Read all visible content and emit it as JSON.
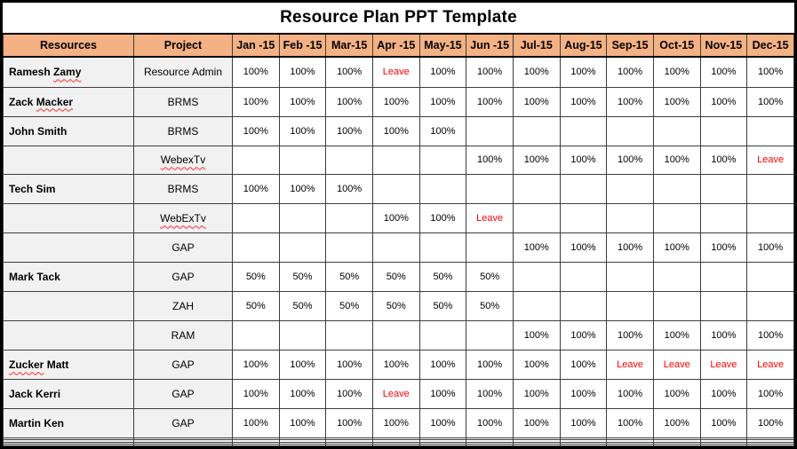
{
  "title": "Resource Plan PPT Template",
  "colors": {
    "header_bg": "#F4B183",
    "label_bg": "#F1F1F1",
    "leave_text": "#FF0000",
    "grid": "#3D3D3D",
    "outer_border": "#000000",
    "squiggle": "#FF2A2A"
  },
  "table": {
    "resources_header": "Resources",
    "project_header": "Project",
    "month_headers": [
      "Jan -15",
      "Feb -15",
      "Mar-15",
      "Apr -15",
      "May-15",
      "Jun -15",
      "Jul-15",
      "Aug-15",
      "Sep-15",
      "Oct-15",
      "Nov-15",
      "Dec-15"
    ],
    "leave_value": "Leave",
    "rows": [
      {
        "resource": "Ramesh Zamy",
        "resource_misspelled": "Zamy",
        "project": "Resource Admin",
        "months": [
          "100%",
          "100%",
          "100%",
          "Leave",
          "100%",
          "100%",
          "100%",
          "100%",
          "100%",
          "100%",
          "100%",
          "100%"
        ]
      },
      {
        "resource": "Zack Macker",
        "resource_misspelled": "Macker",
        "project": "BRMS",
        "months": [
          "100%",
          "100%",
          "100%",
          "100%",
          "100%",
          "100%",
          "100%",
          "100%",
          "100%",
          "100%",
          "100%",
          "100%"
        ]
      },
      {
        "resource": "John Smith",
        "project": "BRMS",
        "months": [
          "100%",
          "100%",
          "100%",
          "100%",
          "100%",
          "",
          "",
          "",
          "",
          "",
          "",
          ""
        ]
      },
      {
        "resource": "",
        "project": "WebexTv",
        "project_misspelled": "WebexTv",
        "months": [
          "",
          "",
          "",
          "",
          "",
          "100%",
          "100%",
          "100%",
          "100%",
          "100%",
          "100%",
          "Leave"
        ]
      },
      {
        "resource": "Tech Sim",
        "project": "BRMS",
        "months": [
          "100%",
          "100%",
          "100%",
          "",
          "",
          "",
          "",
          "",
          "",
          "",
          "",
          ""
        ]
      },
      {
        "resource": "",
        "project": "WebExTv",
        "project_misspelled": "WebExTv",
        "months": [
          "",
          "",
          "",
          "100%",
          "100%",
          "Leave",
          "",
          "",
          "",
          "",
          "",
          ""
        ]
      },
      {
        "resource": "",
        "project": "GAP",
        "months": [
          "",
          "",
          "",
          "",
          "",
          "",
          "100%",
          "100%",
          "100%",
          "100%",
          "100%",
          "100%"
        ]
      },
      {
        "resource": "Mark Tack",
        "project": "GAP",
        "months": [
          "50%",
          "50%",
          "50%",
          "50%",
          "50%",
          "50%",
          "",
          "",
          "",
          "",
          "",
          ""
        ]
      },
      {
        "resource": "",
        "project": "ZAH",
        "months": [
          "50%",
          "50%",
          "50%",
          "50%",
          "50%",
          "50%",
          "",
          "",
          "",
          "",
          "",
          ""
        ]
      },
      {
        "resource": "",
        "project": "RAM",
        "months": [
          "",
          "",
          "",
          "",
          "",
          "",
          "100%",
          "100%",
          "100%",
          "100%",
          "100%",
          "100%"
        ]
      },
      {
        "resource": "Zucker Matt",
        "resource_misspelled": "Zucker",
        "project": "GAP",
        "months": [
          "100%",
          "100%",
          "100%",
          "100%",
          "100%",
          "100%",
          "100%",
          "100%",
          "Leave",
          "Leave",
          "Leave",
          "Leave"
        ]
      },
      {
        "resource": "Jack Kerri",
        "project": "GAP",
        "months": [
          "100%",
          "100%",
          "100%",
          "Leave",
          "100%",
          "100%",
          "100%",
          "100%",
          "100%",
          "100%",
          "100%",
          "100%"
        ]
      },
      {
        "resource": "Martin Ken",
        "project": "GAP",
        "months": [
          "100%",
          "100%",
          "100%",
          "100%",
          "100%",
          "100%",
          "100%",
          "100%",
          "100%",
          "100%",
          "100%",
          "100%"
        ]
      },
      {
        "resource": "",
        "project": "",
        "months": [
          "",
          "",
          "",
          "",
          "",
          "",
          "",
          "",
          "",
          "",
          "",
          ""
        ]
      },
      {
        "resource": "",
        "project": "",
        "months": [
          "",
          "",
          "",
          "",
          "",
          "",
          "",
          "",
          "",
          "",
          "",
          ""
        ]
      },
      {
        "resource": "",
        "project": "",
        "months": [
          "",
          "",
          "",
          "",
          "",
          "",
          "",
          "",
          "",
          "",
          "",
          ""
        ]
      },
      {
        "resource": "",
        "project": "",
        "months": [
          "",
          "",
          "",
          "",
          "",
          "",
          "",
          "",
          "",
          "",
          "",
          ""
        ]
      }
    ]
  }
}
